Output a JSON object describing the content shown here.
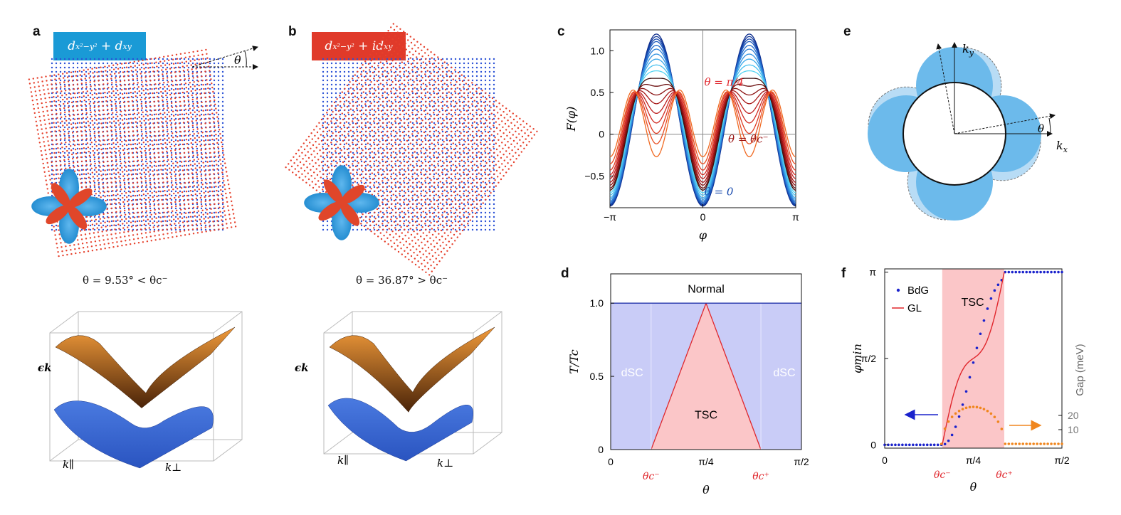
{
  "panels": {
    "a": {
      "letter": "a",
      "label": "d_{x²−y²} + d_{xy}",
      "angle_symbol": "θ",
      "caption": "θ = 9.53° < θc⁻",
      "eps": "ϵk",
      "kpar": "k∥",
      "kperp": "k⊥"
    },
    "b": {
      "letter": "b",
      "label": "d_{x²−y²} + id_{xy}",
      "caption": "θ = 36.87° > θc⁻",
      "eps": "ϵk",
      "kpar": "k∥",
      "kperp": "k⊥"
    },
    "c": {
      "letter": "c"
    },
    "d": {
      "letter": "d"
    },
    "e": {
      "letter": "e",
      "ky": "ky",
      "kx": "kx",
      "theta": "θ"
    },
    "f": {
      "letter": "f"
    }
  },
  "colors": {
    "blue_box": "#1a9ad6",
    "red_box": "#e03a2a",
    "blue_dots": "#2b52d6",
    "red_dots": "#e6402b",
    "dsc_fill": "#c9ccf7",
    "tsc_fill": "#fbc6c8",
    "tsc_line": "#e0262c",
    "normal_line": "#2233aa"
  },
  "chart_data": [
    {
      "id": "c",
      "type": "line",
      "xlabel": "φ",
      "ylabel": "F(φ)",
      "xlim": [
        -3.1416,
        3.1416
      ],
      "ylim": [
        -0.88,
        1.25
      ],
      "xticks": [
        {
          "v": -3.1416,
          "t": "−π"
        },
        {
          "v": 0,
          "t": "0"
        },
        {
          "v": 3.1416,
          "t": "π"
        }
      ],
      "yticks": [
        {
          "v": -0.5,
          "t": "−0.5"
        },
        {
          "v": 0,
          "t": "0"
        },
        {
          "v": 0.5,
          "t": "0.5"
        },
        {
          "v": 1.0,
          "t": "1.0"
        }
      ],
      "model": "F = A·cos(2φ)+B·cos(4φ)",
      "series": [
        {
          "A": -1.03,
          "B": 0.0,
          "color": "#0b2a8a"
        },
        {
          "A": -1.01,
          "B": -0.01,
          "color": "#10389c"
        },
        {
          "A": -0.99,
          "B": -0.02,
          "color": "#1648ad"
        },
        {
          "A": -0.97,
          "B": -0.03,
          "color": "#1c5abd"
        },
        {
          "A": -0.94,
          "B": -0.045,
          "color": "#246ccc"
        },
        {
          "A": -0.91,
          "B": -0.06,
          "color": "#2c80d8"
        },
        {
          "A": -0.87,
          "B": -0.08,
          "color": "#3595e2"
        },
        {
          "A": -0.83,
          "B": -0.1,
          "color": "#3eaaea"
        },
        {
          "A": -0.78,
          "B": -0.12,
          "color": "#48c0ef"
        },
        {
          "A": -0.73,
          "B": -0.14,
          "color": "#55d4f2"
        },
        {
          "A": -0.67,
          "B": -0.17,
          "color": "#3a1010"
        },
        {
          "A": -0.61,
          "B": -0.2,
          "color": "#6a0d0d"
        },
        {
          "A": -0.54,
          "B": -0.23,
          "color": "#8a1010"
        },
        {
          "A": -0.47,
          "B": -0.26,
          "color": "#a61616"
        },
        {
          "A": -0.39,
          "B": -0.29,
          "color": "#bd1f1f"
        },
        {
          "A": -0.31,
          "B": -0.32,
          "color": "#d02a22"
        },
        {
          "A": -0.22,
          "B": -0.35,
          "color": "#de3a22"
        },
        {
          "A": -0.12,
          "B": -0.37,
          "color": "#e84d22"
        },
        {
          "A": 0.0,
          "B": -0.4,
          "color": "#f06a22"
        }
      ],
      "annotations": [
        {
          "text": "θ = π/4",
          "x": 0.0,
          "y": 0.58,
          "color": "#e0262c"
        },
        {
          "text": "θ = θc⁻",
          "x": 2.3,
          "y": -0.1,
          "color": "#9a1414"
        },
        {
          "text": "θ = 0",
          "x": 1.5,
          "y": -0.73,
          "color": "#1648ad"
        }
      ]
    },
    {
      "id": "d",
      "type": "area",
      "xlabel": "θ",
      "ylabel": "T/Tc",
      "xlim": [
        0,
        1.5708
      ],
      "ylim": [
        0,
        1.2
      ],
      "xticks": [
        {
          "v": 0,
          "t": "0"
        },
        {
          "v": 0.7854,
          "t": "π/4"
        },
        {
          "v": 1.5708,
          "t": "π/2"
        }
      ],
      "xticks_red": [
        {
          "v": 0.333,
          "t": "θc⁻"
        },
        {
          "v": 1.237,
          "t": "θc⁺"
        }
      ],
      "yticks": [
        {
          "v": 0,
          "t": "0"
        },
        {
          "v": 0.5,
          "t": "0.5"
        },
        {
          "v": 1.0,
          "t": "1.0"
        }
      ],
      "boundary": {
        "theta_c_minus": 0.333,
        "theta_c_plus": 1.237,
        "peak": 0.7854,
        "top": 1.0
      },
      "labels": {
        "normal": "Normal",
        "dsc": "dSC",
        "tsc": "TSC"
      }
    },
    {
      "id": "f",
      "type": "scatter",
      "xlabel": "θ",
      "ylabel": "φmin",
      "y2label": "Gap (meV)",
      "xlim": [
        0,
        1.5708
      ],
      "ylim": [
        0,
        3.1416
      ],
      "xticks": [
        {
          "v": 0,
          "t": "0"
        },
        {
          "v": 0.7854,
          "t": "π/4"
        },
        {
          "v": 1.5708,
          "t": "π/2"
        }
      ],
      "xticks_red": [
        {
          "v": 0.51,
          "t": "θc⁻"
        },
        {
          "v": 1.06,
          "t": "θc⁺"
        }
      ],
      "yticks": [
        {
          "v": 0,
          "t": "0"
        },
        {
          "v": 1.5708,
          "t": "π/2"
        },
        {
          "v": 3.1416,
          "t": "π"
        }
      ],
      "y2ticks": [
        {
          "v": 20,
          "t": "20"
        },
        {
          "v": 10,
          "t": "10"
        }
      ],
      "tsc_region": [
        0.51,
        1.06
      ],
      "legend": [
        {
          "name": "BdG",
          "color": "#1a22cc"
        },
        {
          "name": "GL",
          "color": "#e0262c"
        }
      ],
      "region_label": "TSC",
      "gap_peak_meV": 26,
      "gap_model": "semi-ellipse from θc⁻ to θc⁺"
    }
  ]
}
